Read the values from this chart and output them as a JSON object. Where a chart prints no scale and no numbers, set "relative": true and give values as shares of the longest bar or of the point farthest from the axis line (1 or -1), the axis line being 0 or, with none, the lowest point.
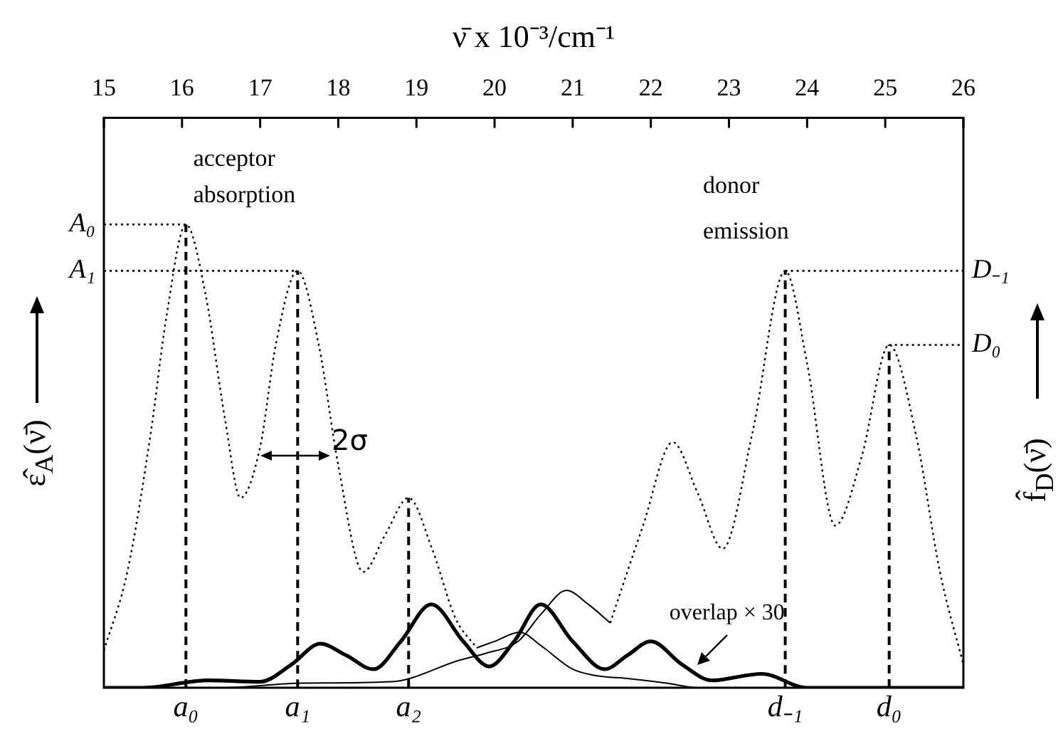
{
  "chart_data": {
    "type": "line",
    "relative": true,
    "xlabel": "ν̄ x 10⁻³/cm⁻¹",
    "ylabel": "ε̂$_{A}$(ν̄)",
    "y2label": "f̂$_{D}$(ν̄)",
    "xlim": [
      15,
      26
    ],
    "xticks": [
      15,
      16,
      17,
      18,
      19,
      20,
      21,
      22,
      23,
      24,
      25,
      26
    ],
    "grid": false,
    "legend": false,
    "marker": "none",
    "series": [
      {
        "color": "#000000",
        "line_style": "dotted",
        "x": [
          15.0,
          15.3,
          15.6,
          15.8,
          16.05,
          16.3,
          16.55,
          16.75,
          17.0,
          17.2,
          17.48,
          17.75,
          18.0,
          18.32,
          18.6,
          18.9,
          19.2,
          19.5,
          19.77
        ],
        "values": [
          0.08,
          0.25,
          0.55,
          0.8,
          1.0,
          0.85,
          0.58,
          0.41,
          0.52,
          0.74,
          0.9,
          0.74,
          0.48,
          0.25,
          0.33,
          0.41,
          0.3,
          0.15,
          0.086
        ]
      },
      {
        "color": "#000000",
        "line_style": "solid",
        "x": [
          19.77,
          20.0,
          20.32,
          20.6,
          21.0,
          21.3,
          21.7,
          22.2,
          22.6,
          26.0
        ],
        "values": [
          0.086,
          0.1,
          0.12,
          0.09,
          0.04,
          0.026,
          0.02,
          0.01,
          0.0,
          0.0
        ]
      },
      {
        "color": "#000000",
        "line_style": "dotted",
        "x": [
          21.48,
          21.9,
          22.28,
          22.6,
          22.92,
          23.3,
          23.72,
          24.0,
          24.36,
          24.7,
          25.05,
          25.4,
          25.7,
          26.0
        ],
        "values": [
          0.14,
          0.35,
          0.53,
          0.42,
          0.3,
          0.55,
          0.9,
          0.7,
          0.35,
          0.5,
          0.74,
          0.54,
          0.25,
          0.05
        ]
      },
      {
        "color": "#000000",
        "line_style": "solid",
        "x": [
          15.0,
          16.5,
          17.54,
          18.68,
          19.56,
          19.9,
          20.3,
          20.6,
          20.92,
          21.2,
          21.48
        ],
        "values": [
          0.0,
          0.0,
          0.01,
          0.013,
          0.06,
          0.075,
          0.1,
          0.16,
          0.21,
          0.18,
          0.14
        ]
      },
      {
        "color": "#000000",
        "line_style": "solid",
        "x": [
          15.0,
          15.5,
          16.33,
          17.0,
          17.4,
          17.77,
          18.1,
          18.45,
          18.8,
          19.19,
          19.6,
          19.93,
          20.25,
          20.59,
          21.0,
          21.41,
          21.7,
          22.0,
          22.4,
          22.78,
          23.42,
          24.0,
          26.0
        ],
        "values": [
          0,
          0,
          0.016,
          0.013,
          0.05,
          0.095,
          0.07,
          0.04,
          0.1,
          0.18,
          0.1,
          0.046,
          0.1,
          0.18,
          0.1,
          0.04,
          0.07,
          0.1,
          0.05,
          0.016,
          0.03,
          0,
          0
        ]
      },
      {
        "name": "A₀",
        "color": "#000000",
        "line_style": "dotted",
        "x": [
          15,
          16.05
        ],
        "values": [
          1.0,
          1.0
        ]
      },
      {
        "name": "A₁",
        "color": "#000000",
        "line_style": "dotted",
        "x": [
          15,
          17.48
        ],
        "values": [
          0.9,
          0.9
        ]
      },
      {
        "name": "D₋₁",
        "color": "#000000",
        "line_style": "dotted",
        "x": [
          23.72,
          26
        ],
        "values": [
          0.9,
          0.9
        ]
      },
      {
        "name": "D₀",
        "color": "#000000",
        "line_style": "dotted",
        "x": [
          25.05,
          26
        ],
        "values": [
          0.74,
          0.74
        ]
      },
      {
        "name": "a₀",
        "color": "#000000",
        "line_style": "dashed",
        "x": [
          16.05,
          16.05
        ],
        "values": [
          0,
          1.0
        ]
      },
      {
        "name": "a₁",
        "color": "#000000",
        "line_style": "dashed",
        "x": [
          17.48,
          17.48
        ],
        "values": [
          0,
          0.9
        ]
      },
      {
        "name": "a₂",
        "color": "#000000",
        "line_style": "dashed",
        "x": [
          18.9,
          18.9
        ],
        "values": [
          0,
          0.41
        ]
      },
      {
        "name": "d₋₁",
        "color": "#000000",
        "line_style": "dashed",
        "x": [
          23.72,
          23.72
        ],
        "values": [
          0,
          0.9
        ]
      },
      {
        "name": "d₀",
        "color": "#000000",
        "line_style": "dashed",
        "x": [
          25.05,
          25.05
        ],
        "values": [
          0,
          0.74
        ]
      }
    ],
    "annotations": [
      "acceptor absorption",
      "donor emission",
      "2σ",
      "overlap × 30"
    ]
  }
}
